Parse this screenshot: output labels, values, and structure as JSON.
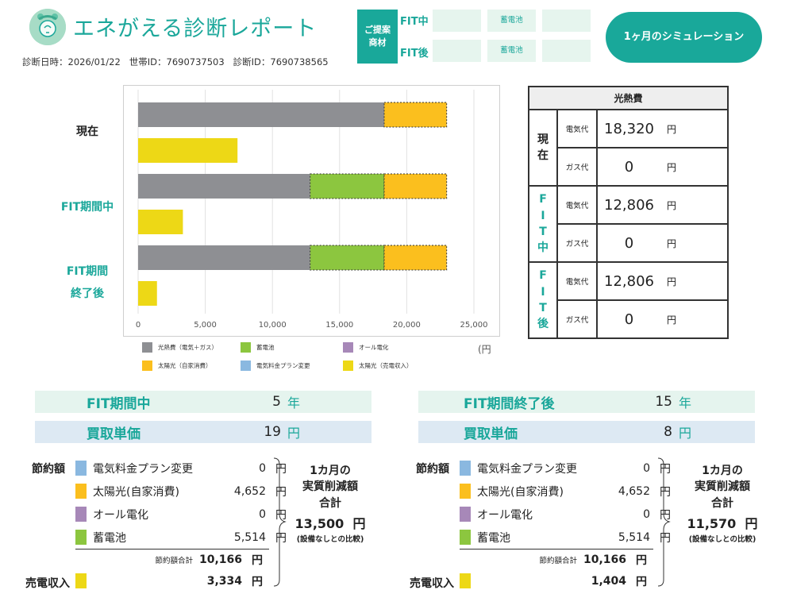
{
  "header": {
    "title": "エネがえる診断レポート",
    "meta": {
      "date_label": "診断日時：",
      "date": "2026/01/22",
      "household_label": "世帯ID：",
      "household_id": "7690737503",
      "diagnosis_label": "診断ID：",
      "diagnosis_id": "7690738565"
    },
    "proposal_line1": "ご提案",
    "proposal_line2": "商材",
    "fit_during": "FIT中",
    "fit_after": "FIT後",
    "battery_1": "蓄電池",
    "battery_2": "蓄電池",
    "simulate_button": "1ヶ月のシミュレーション"
  },
  "chart_data": {
    "type": "bar",
    "orientation": "horizontal",
    "stacked": true,
    "categories": [
      "現在",
      "FIT期間中",
      "FIT期間終了後"
    ],
    "category_labels": [
      [
        "現在"
      ],
      [
        "FIT期間中"
      ],
      [
        "FIT期間",
        "終了後"
      ]
    ],
    "unit": "(円",
    "xlim": [
      0,
      25000
    ],
    "ticks": [
      "0",
      "5,000",
      "10,000",
      "15,000",
      "20,000",
      "25,000"
    ],
    "grid": true,
    "legend_position": "bottom",
    "cost_bars": [
      {
        "category": "現在",
        "segments": [
          {
            "series": "光熱費（電気＋ガス）",
            "value": 18320
          },
          {
            "series": "太陽光（自家消費）",
            "value": 4652
          }
        ]
      },
      {
        "category": "FIT期間中",
        "segments": [
          {
            "series": "光熱費（電気＋ガス）",
            "value": 12806
          },
          {
            "series": "蓄電池",
            "value": 5514
          },
          {
            "series": "太陽光（自家消費）",
            "value": 4652
          }
        ]
      },
      {
        "category": "FIT期間終了後",
        "segments": [
          {
            "series": "光熱費（電気＋ガス）",
            "value": 12806
          },
          {
            "series": "蓄電池",
            "value": 5514
          },
          {
            "series": "太陽光（自家消費）",
            "value": 4652
          }
        ]
      }
    ],
    "sale_bars": [
      {
        "category": "現在",
        "series": "太陽光（売電収入）",
        "value": 7400
      },
      {
        "category": "FIT期間中",
        "series": "太陽光（売電収入）",
        "value": 3334
      },
      {
        "category": "FIT期間終了後",
        "series": "太陽光（売電収入）",
        "value": 1404
      }
    ],
    "series": [
      {
        "name": "光熱費（電気＋ガス）",
        "color": "#8e8f93"
      },
      {
        "name": "蓄電池",
        "color": "#8cc63f"
      },
      {
        "name": "オール電化",
        "color": "#a788b8"
      },
      {
        "name": "太陽光（自家消費）",
        "color": "#fbbf1e"
      },
      {
        "name": "電気料金プラン変更",
        "color": "#8ab8e0"
      },
      {
        "name": "太陽光（売電収入）",
        "color": "#edd816"
      }
    ]
  },
  "table": {
    "title": "光熱費",
    "groups": [
      {
        "label": "現在",
        "color": "#222222",
        "rows": [
          {
            "kind": "電気代",
            "value": "18,320",
            "unit": "円"
          },
          {
            "kind": "ガス代",
            "value": "0",
            "unit": "円"
          }
        ]
      },
      {
        "label": "FIT中",
        "color": "#1aa79a",
        "rows": [
          {
            "kind": "電気代",
            "value": "12,806",
            "unit": "円"
          },
          {
            "kind": "ガス代",
            "value": "0",
            "unit": "円"
          }
        ]
      },
      {
        "label": "FIT後",
        "color": "#1aa79a",
        "rows": [
          {
            "kind": "電気代",
            "value": "12,806",
            "unit": "円"
          },
          {
            "kind": "ガス代",
            "value": "0",
            "unit": "円"
          }
        ]
      }
    ]
  },
  "panels": [
    {
      "period_label": "FIT期間中",
      "period_value": "5",
      "period_unit": "年",
      "price_label": "買取単価",
      "price_value": "19",
      "price_unit": "円",
      "savings_label": "節約額",
      "items": [
        {
          "name": "電気料金プラン変更",
          "value": "0",
          "unit": "円",
          "color": "#8ab8e0"
        },
        {
          "name": "太陽光(自家消費)",
          "value": "4,652",
          "unit": "円",
          "color": "#fbbf1e"
        },
        {
          "name": "オール電化",
          "value": "0",
          "unit": "円",
          "color": "#a788b8"
        },
        {
          "name": "蓄電池",
          "value": "5,514",
          "unit": "円",
          "color": "#8cc63f"
        }
      ],
      "subtotal_label": "節約額合計",
      "subtotal_value": "10,166",
      "subtotal_unit": "円",
      "sales_label": "売電収入",
      "sales_value": "3,334",
      "sales_unit": "円",
      "summary_line1": "1カ月の",
      "summary_line2": "実質削減額",
      "summary_line3": "合計",
      "summary_value": "13,500",
      "summary_unit": "円",
      "summary_note": "(設備なしとの比較)"
    },
    {
      "period_label": "FIT期間終了後",
      "period_value": "15",
      "period_unit": "年",
      "price_label": "買取単価",
      "price_value": "8",
      "price_unit": "円",
      "savings_label": "節約額",
      "items": [
        {
          "name": "電気料金プラン変更",
          "value": "0",
          "unit": "円",
          "color": "#8ab8e0"
        },
        {
          "name": "太陽光(自家消費)",
          "value": "4,652",
          "unit": "円",
          "color": "#fbbf1e"
        },
        {
          "name": "オール電化",
          "value": "0",
          "unit": "円",
          "color": "#a788b8"
        },
        {
          "name": "蓄電池",
          "value": "5,514",
          "unit": "円",
          "color": "#8cc63f"
        }
      ],
      "subtotal_label": "節約額合計",
      "subtotal_value": "10,166",
      "subtotal_unit": "円",
      "sales_label": "売電収入",
      "sales_value": "1,404",
      "sales_unit": "円",
      "summary_line1": "1カ月の",
      "summary_line2": "実質削減額",
      "summary_line3": "合計",
      "summary_value": "11,570",
      "summary_unit": "円",
      "summary_note": "(設備なしとの比較)"
    }
  ]
}
